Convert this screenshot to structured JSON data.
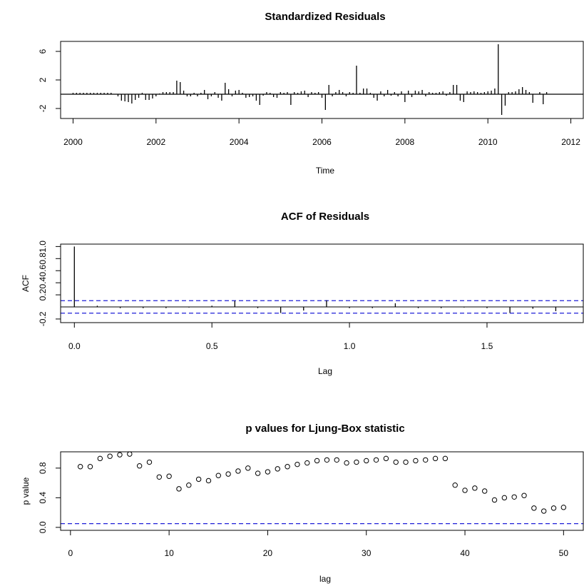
{
  "chart_data": [
    {
      "type": "bar",
      "title": "Standardized Residuals",
      "xlabel": "Time",
      "ylabel": "",
      "xlim": [
        1999.7,
        2012.3
      ],
      "ylim": [
        -3.4,
        7.4
      ],
      "x_ticks": [
        2000,
        2002,
        2004,
        2006,
        2008,
        2010,
        2012
      ],
      "x_tick_labels": [
        "2000",
        "2002",
        "2004",
        "2006",
        "2008",
        "2010",
        "2012"
      ],
      "y_ticks": [
        -2,
        2,
        6
      ],
      "y_tick_labels": [
        "-2",
        "2",
        "6"
      ],
      "baseline": 0,
      "start": 2000.0,
      "frequency": 12,
      "values": [
        0.2,
        0.2,
        0.2,
        0.2,
        0.2,
        0.2,
        0.2,
        0.2,
        0.2,
        0.2,
        0.2,
        0.2,
        0.0,
        -0.3,
        -0.9,
        -1.0,
        -1.1,
        -1.3,
        -0.8,
        -0.5,
        0.2,
        -0.8,
        -0.8,
        -0.6,
        -0.3,
        0.1,
        0.3,
        0.3,
        0.3,
        0.3,
        1.9,
        1.7,
        0.5,
        -0.3,
        -0.3,
        0.2,
        -0.3,
        0.2,
        0.6,
        -0.7,
        -0.3,
        0.3,
        -0.5,
        -0.9,
        1.6,
        0.7,
        -0.3,
        0.5,
        0.6,
        0.2,
        -0.5,
        -0.4,
        -0.3,
        -0.9,
        -1.5,
        -0.2,
        0.3,
        0.2,
        -0.4,
        -0.5,
        0.3,
        0.2,
        0.3,
        -1.5,
        0.3,
        0.2,
        0.4,
        0.5,
        -0.4,
        0.3,
        0.2,
        0.3,
        -0.5,
        -2.2,
        1.3,
        -0.3,
        0.3,
        0.6,
        0.3,
        -0.3,
        0.3,
        0.2,
        4.0,
        0.2,
        0.8,
        0.8,
        0.2,
        -0.5,
        -0.9,
        0.4,
        -0.3,
        0.6,
        -0.2,
        0.3,
        -0.3,
        0.4,
        -1.1,
        0.5,
        -0.4,
        0.5,
        0.4,
        0.6,
        -0.3,
        0.3,
        0.2,
        0.2,
        0.3,
        0.4,
        -0.2,
        0.3,
        1.3,
        1.3,
        -0.9,
        -1.1,
        0.4,
        0.3,
        0.4,
        0.3,
        0.2,
        0.3,
        0.4,
        0.5,
        0.8,
        7.0,
        -2.9,
        -1.6,
        0.3,
        0.3,
        0.4,
        0.7,
        1.0,
        0.6,
        0.3,
        -1.2,
        0.0,
        0.3,
        -1.4,
        0.3
      ]
    },
    {
      "type": "bar",
      "title": "ACF of Residuals",
      "xlabel": "Lag",
      "ylabel": "ACF",
      "xlim": [
        -0.05,
        1.85
      ],
      "ylim": [
        -0.26,
        1.04
      ],
      "x_ticks": [
        0.0,
        0.5,
        1.0,
        1.5
      ],
      "x_tick_labels": [
        "0.0",
        "0.5",
        "1.0",
        "1.5"
      ],
      "y_ticks": [
        -0.2,
        0.2,
        0.4,
        0.6,
        0.8,
        1.0
      ],
      "y_tick_labels": [
        "-0.2",
        "0.2",
        "0.4",
        "0.6",
        "0.8",
        "1.0"
      ],
      "ci_bounds": [
        0.103,
        -0.103
      ],
      "lags": [
        0.0,
        0.0833,
        0.1667,
        0.25,
        0.3333,
        0.4167,
        0.5,
        0.5833,
        0.6667,
        0.75,
        0.8333,
        0.9167,
        1.0,
        1.0833,
        1.1667,
        1.25,
        1.3333,
        1.4167,
        1.5,
        1.5833,
        1.6667,
        1.75
      ],
      "values": [
        1.0,
        0.02,
        -0.02,
        -0.02,
        -0.02,
        -0.01,
        0.02,
        0.1,
        -0.02,
        -0.1,
        -0.06,
        0.11,
        -0.02,
        -0.02,
        0.06,
        -0.02,
        -0.02,
        -0.01,
        -0.02,
        -0.1,
        -0.03,
        -0.07
      ]
    },
    {
      "type": "scatter",
      "title": "p values for Ljung-Box statistic",
      "xlabel": "lag",
      "ylabel": "p value",
      "xlim": [
        -1,
        52
      ],
      "ylim": [
        -0.04,
        1.02
      ],
      "x_ticks": [
        0,
        10,
        20,
        30,
        40,
        50
      ],
      "x_tick_labels": [
        "0",
        "10",
        "20",
        "30",
        "40",
        "50"
      ],
      "y_ticks": [
        0.0,
        0.4,
        0.8
      ],
      "y_tick_labels": [
        "0.0",
        "0.4",
        "0.8"
      ],
      "ref_line": 0.05,
      "x": [
        1,
        2,
        3,
        4,
        5,
        6,
        7,
        8,
        9,
        10,
        11,
        12,
        13,
        14,
        15,
        16,
        17,
        18,
        19,
        20,
        21,
        22,
        23,
        24,
        25,
        26,
        27,
        28,
        29,
        30,
        31,
        32,
        33,
        34,
        35,
        36,
        37,
        38,
        39,
        40,
        41,
        42,
        43,
        44,
        45,
        46,
        47,
        48,
        49,
        50
      ],
      "y": [
        0.82,
        0.82,
        0.93,
        0.96,
        0.98,
        0.99,
        0.83,
        0.88,
        0.68,
        0.69,
        0.52,
        0.57,
        0.65,
        0.63,
        0.7,
        0.72,
        0.76,
        0.8,
        0.73,
        0.75,
        0.79,
        0.82,
        0.85,
        0.87,
        0.9,
        0.91,
        0.91,
        0.87,
        0.88,
        0.9,
        0.91,
        0.93,
        0.88,
        0.88,
        0.9,
        0.91,
        0.93,
        0.93,
        0.57,
        0.5,
        0.53,
        0.49,
        0.37,
        0.4,
        0.41,
        0.43,
        0.26,
        0.22,
        0.26,
        0.27
      ]
    }
  ]
}
